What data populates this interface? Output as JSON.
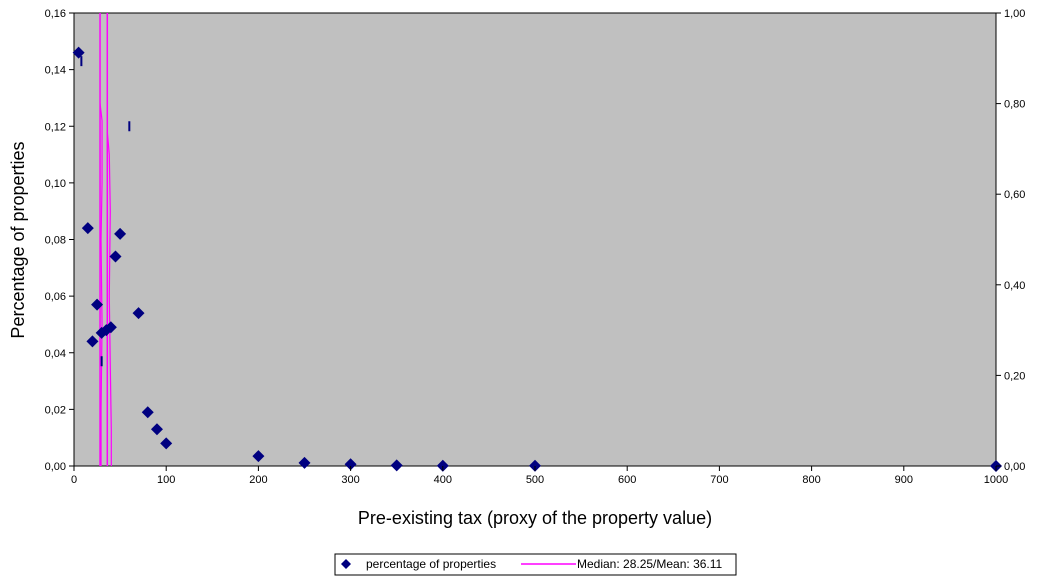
{
  "chart_data": {
    "type": "scatter",
    "title": "",
    "xlabel": "Pre-existing tax (proxy of the property value)",
    "ylabel": "Percentage of properties",
    "y2label": "",
    "xlim": [
      0,
      1000
    ],
    "ylim": [
      0,
      0.16
    ],
    "y2lim": [
      0,
      1.0
    ],
    "grid": false,
    "plot_background": "#c0c0c0",
    "legend_position": "bottom-center",
    "x_ticks": [
      "0",
      "100",
      "200",
      "300",
      "400",
      "500",
      "600",
      "700",
      "800",
      "900",
      "1000"
    ],
    "y_ticks": [
      "0,00",
      "0,02",
      "0,04",
      "0,06",
      "0,08",
      "0,10",
      "0,12",
      "0,14",
      "0,16"
    ],
    "y2_ticks": [
      "0,00",
      "0,20",
      "0,40",
      "0,60",
      "0,80",
      "1,00"
    ],
    "series": [
      {
        "name": "percentage of properties",
        "kind": "scatter",
        "marker": "diamond",
        "color": "#000080",
        "x": [
          5,
          15,
          20,
          25,
          30,
          35,
          40,
          45,
          50,
          70,
          80,
          90,
          100,
          200,
          250,
          300,
          350,
          400,
          500,
          1000
        ],
        "y": [
          0.146,
          0.084,
          0.044,
          0.057,
          0.047,
          0.048,
          0.049,
          0.074,
          0.082,
          0.054,
          0.019,
          0.013,
          0.008,
          0.0035,
          0.0011,
          0.0006,
          0.0002,
          0.0001,
          0.0001,
          0.0
        ]
      },
      {
        "name": "Median: 28.25/Mean: 36.11",
        "kind": "line",
        "color": "#ff00ff",
        "median": 28.25,
        "mean": 36.11
      }
    ],
    "marks": [
      {
        "x": 8,
        "y": 0.143
      },
      {
        "x": 60,
        "y": 0.12
      },
      {
        "x": 30,
        "y": 0.037
      }
    ]
  }
}
